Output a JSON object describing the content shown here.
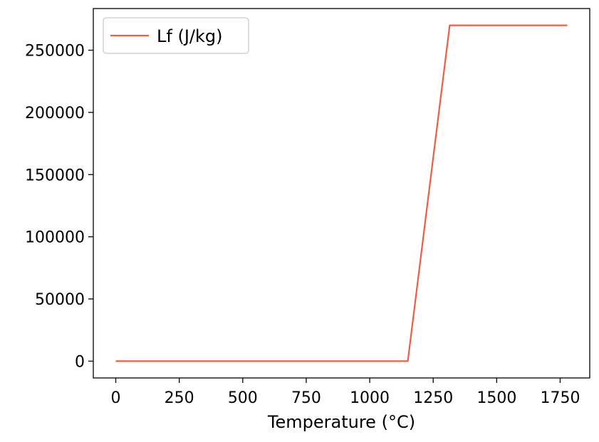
{
  "chart_data": {
    "type": "line",
    "title": "",
    "xlabel": "Temperature (°C)",
    "ylabel": "",
    "xlim": [
      -88.5,
      1866.5
    ],
    "ylim": [
      -13500,
      283500
    ],
    "grid": false,
    "legend_position": "top-left",
    "x_ticks": [
      0,
      250,
      500,
      750,
      1000,
      1250,
      1500,
      1750
    ],
    "x_tick_labels": [
      "0",
      "250",
      "500",
      "750",
      "1000",
      "1250",
      "1500",
      "1750"
    ],
    "y_ticks": [
      0,
      50000,
      100000,
      150000,
      200000,
      250000
    ],
    "y_tick_labels": [
      "0",
      "50000",
      "100000",
      "150000",
      "200000",
      "250000"
    ],
    "series": [
      {
        "name": "Lf (J/kg)",
        "color": "#f05d45",
        "x": [
          0,
          1150,
          1315,
          1778
        ],
        "y": [
          0,
          0,
          270000,
          270000
        ]
      }
    ]
  }
}
